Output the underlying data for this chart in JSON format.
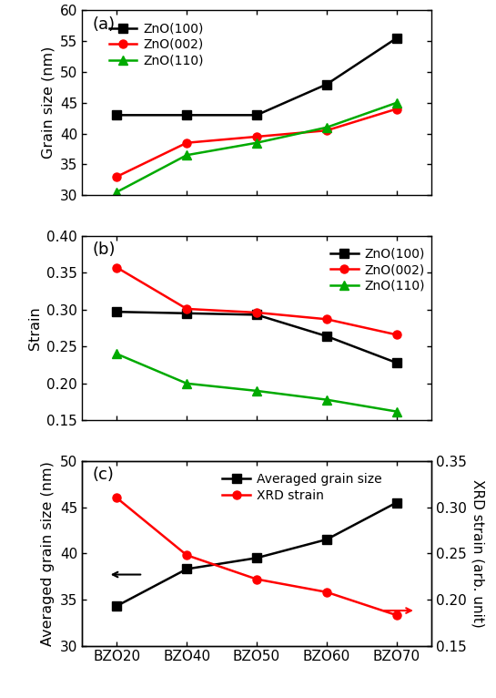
{
  "x_labels": [
    "BZO20",
    "BZO40",
    "BZO50",
    "BZO60",
    "BZO70"
  ],
  "panel_a": {
    "title": "(a)",
    "ylabel": "Grain size (nm)",
    "ylim": [
      30,
      60
    ],
    "yticks": [
      30,
      35,
      40,
      45,
      50,
      55,
      60
    ],
    "ZnO100": [
      43.0,
      43.0,
      43.0,
      48.0,
      55.5
    ],
    "ZnO002": [
      33.0,
      38.5,
      39.5,
      40.5,
      44.0
    ],
    "ZnO110": [
      30.5,
      36.5,
      38.5,
      41.0,
      45.0
    ]
  },
  "panel_b": {
    "title": "(b)",
    "ylabel": "Strain",
    "ylim": [
      0.15,
      0.4
    ],
    "yticks": [
      0.15,
      0.2,
      0.25,
      0.3,
      0.35,
      0.4
    ],
    "ZnO100": [
      0.297,
      0.295,
      0.293,
      0.264,
      0.228
    ],
    "ZnO002": [
      0.357,
      0.301,
      0.296,
      0.287,
      0.266
    ],
    "ZnO110": [
      0.24,
      0.2,
      0.19,
      0.178,
      0.162
    ]
  },
  "panel_c": {
    "title": "(c)",
    "ylabel_left": "Averaged grain size (nm)",
    "ylabel_right": "XRD strain (arb. unit)",
    "ylim_left": [
      30,
      50
    ],
    "ylim_right": [
      0.15,
      0.35
    ],
    "yticks_left": [
      30,
      35,
      40,
      45,
      50
    ],
    "yticks_right": [
      0.15,
      0.2,
      0.25,
      0.3,
      0.35
    ],
    "avg_grain": [
      34.3,
      38.3,
      39.5,
      41.5,
      45.5
    ],
    "xrd_strain": [
      0.31,
      0.248,
      0.222,
      0.208,
      0.183
    ]
  },
  "color_black": "#000000",
  "color_red": "#ff0000",
  "color_green": "#00aa00",
  "linewidth": 1.8,
  "markersize": 6.5
}
